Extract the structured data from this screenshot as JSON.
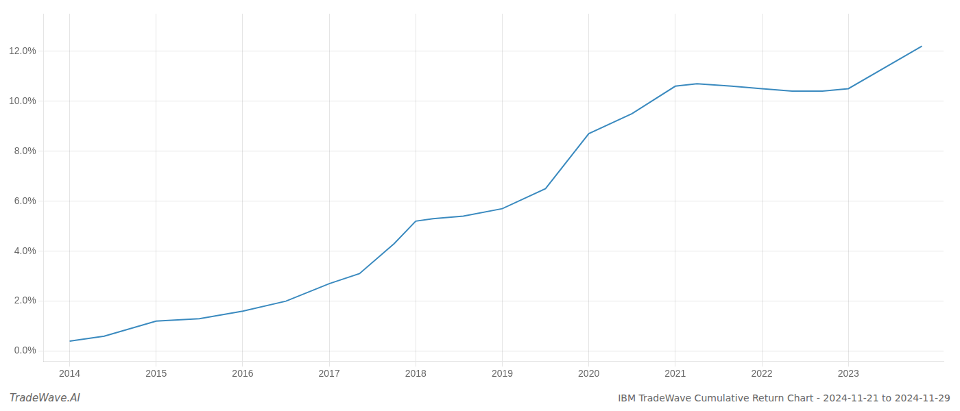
{
  "chart_data": {
    "type": "line",
    "title": "IBM TradeWave Cumulative Return Chart - 2024-11-21 to 2024-11-29",
    "annotations": [
      "TradeWave.AI"
    ],
    "x": [
      2014.0,
      2014.4,
      2015.0,
      2015.5,
      2016.0,
      2016.5,
      2017.0,
      2017.35,
      2017.75,
      2018.0,
      2018.2,
      2018.55,
      2019.0,
      2019.5,
      2020.0,
      2020.5,
      2021.0,
      2021.25,
      2021.65,
      2022.0,
      2022.35,
      2022.7,
      2023.0,
      2023.85
    ],
    "values": [
      0.004,
      0.006,
      0.012,
      0.013,
      0.016,
      0.02,
      0.027,
      0.031,
      0.043,
      0.052,
      0.053,
      0.054,
      0.057,
      0.065,
      0.087,
      0.095,
      0.106,
      0.107,
      0.106,
      0.105,
      0.104,
      0.104,
      0.105,
      0.122
    ],
    "color": "#3a8abf",
    "xlim": [
      2013.7,
      2024.1
    ],
    "ylim": [
      -0.004,
      0.135
    ],
    "xticks": [
      2014,
      2015,
      2016,
      2017,
      2018,
      2019,
      2020,
      2021,
      2022,
      2023
    ],
    "yticks": [
      {
        "value": 0.0,
        "label": "0.0%"
      },
      {
        "value": 0.02,
        "label": "2.0%"
      },
      {
        "value": 0.04,
        "label": "4.0%"
      },
      {
        "value": 0.06,
        "label": "6.0%"
      },
      {
        "value": 0.08,
        "label": "8.0%"
      },
      {
        "value": 0.1,
        "label": "10.0%"
      },
      {
        "value": 0.12,
        "label": "12.0%"
      }
    ],
    "grid": true
  }
}
